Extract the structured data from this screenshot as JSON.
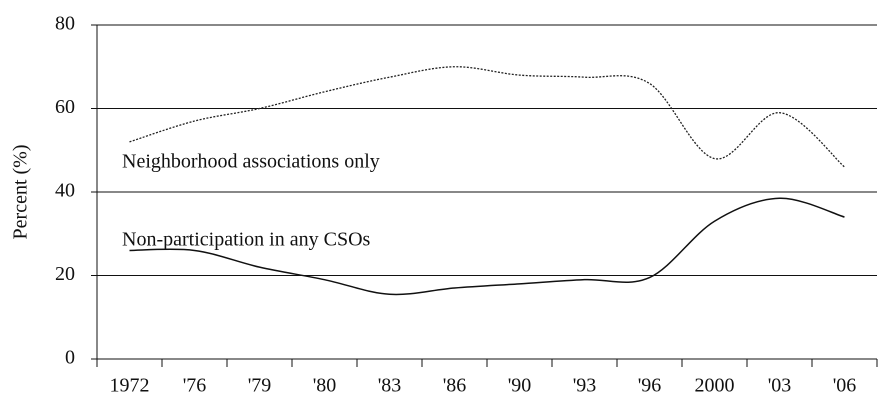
{
  "chart_data": {
    "type": "line",
    "y_label": "Percent (%)",
    "categories": [
      "1972",
      "'76",
      "'79",
      "'80",
      "'83",
      "'86",
      "'90",
      "'93",
      "'96",
      "2000",
      "'03",
      "'06"
    ],
    "series": [
      {
        "name": "Neighborhood associations only",
        "color": "#222222",
        "dash": true,
        "values": [
          52,
          57,
          60,
          64,
          67.5,
          70,
          68,
          67.5,
          66,
          48,
          59,
          46
        ]
      },
      {
        "name": "Non-participation in any CSOs",
        "color": "#111111",
        "dash": false,
        "values": [
          26,
          26,
          22,
          19,
          15.5,
          17,
          18,
          19,
          19.5,
          33,
          38.5,
          34
        ]
      }
    ],
    "ylim": [
      0,
      80
    ],
    "yticks": [
      0,
      20,
      40,
      60,
      80
    ],
    "grid": true
  }
}
